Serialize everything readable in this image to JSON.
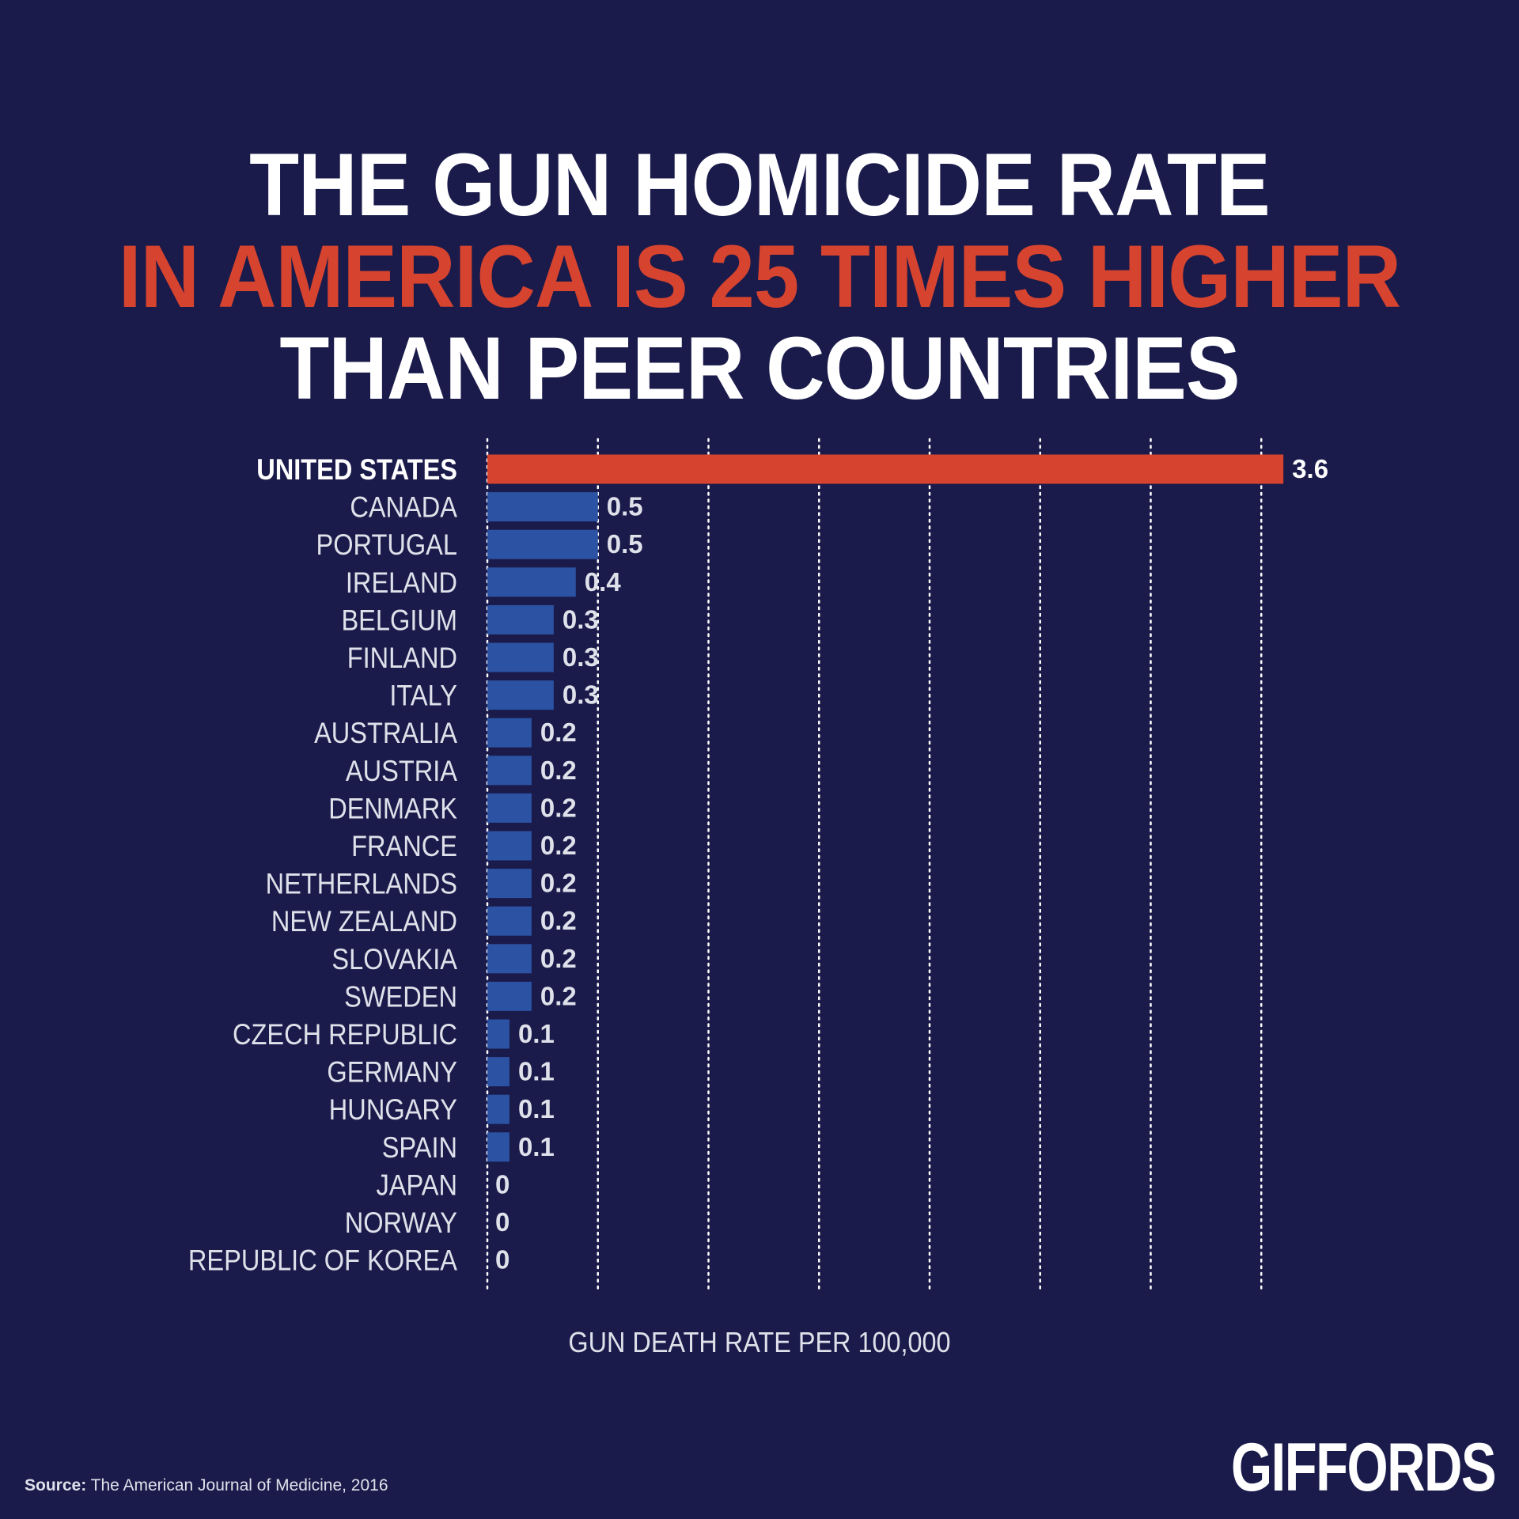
{
  "title": {
    "line1": "THE GUN HOMICIDE RATE",
    "line2": "IN AMERICA IS 25 TIMES HIGHER",
    "line3": "THAN PEER COUNTRIES"
  },
  "chart_data": {
    "type": "bar",
    "orientation": "horizontal",
    "categories": [
      "UNITED STATES",
      "CANADA",
      "PORTUGAL",
      "IRELAND",
      "BELGIUM",
      "FINLAND",
      "ITALY",
      "AUSTRALIA",
      "AUSTRIA",
      "DENMARK",
      "FRANCE",
      "NETHERLANDS",
      "NEW ZEALAND",
      "SLOVAKIA",
      "SWEDEN",
      "CZECH REPUBLIC",
      "GERMANY",
      "HUNGARY",
      "SPAIN",
      "JAPAN",
      "NORWAY",
      "REPUBLIC OF KOREA"
    ],
    "values": [
      3.6,
      0.5,
      0.5,
      0.4,
      0.3,
      0.3,
      0.3,
      0.2,
      0.2,
      0.2,
      0.2,
      0.2,
      0.2,
      0.2,
      0.2,
      0.1,
      0.1,
      0.1,
      0.1,
      0,
      0,
      0
    ],
    "value_labels": [
      "3.6",
      "0.5",
      "0.5",
      "0.4",
      "0.3",
      "0.3",
      "0.3",
      "0.2",
      "0.2",
      "0.2",
      "0.2",
      "0.2",
      "0.2",
      "0.2",
      "0.2",
      "0.1",
      "0.1",
      "0.1",
      "0.1",
      "0",
      "0",
      "0"
    ],
    "highlight": "UNITED STATES",
    "xlabel": "GUN DEATH RATE PER 100,000",
    "xlim": [
      0,
      3.5
    ],
    "gridlines_at": [
      0,
      0.5,
      1,
      1.5,
      2,
      2.5,
      3,
      3.5
    ],
    "grid": true,
    "colors": {
      "highlight": "#d6432f",
      "default": "#2b52a3",
      "background": "#1a1b4b"
    }
  },
  "footer": {
    "source_label": "Source:",
    "source_text": " The American Journal of Medicine, 2016",
    "logo": "GIFFORDS"
  }
}
